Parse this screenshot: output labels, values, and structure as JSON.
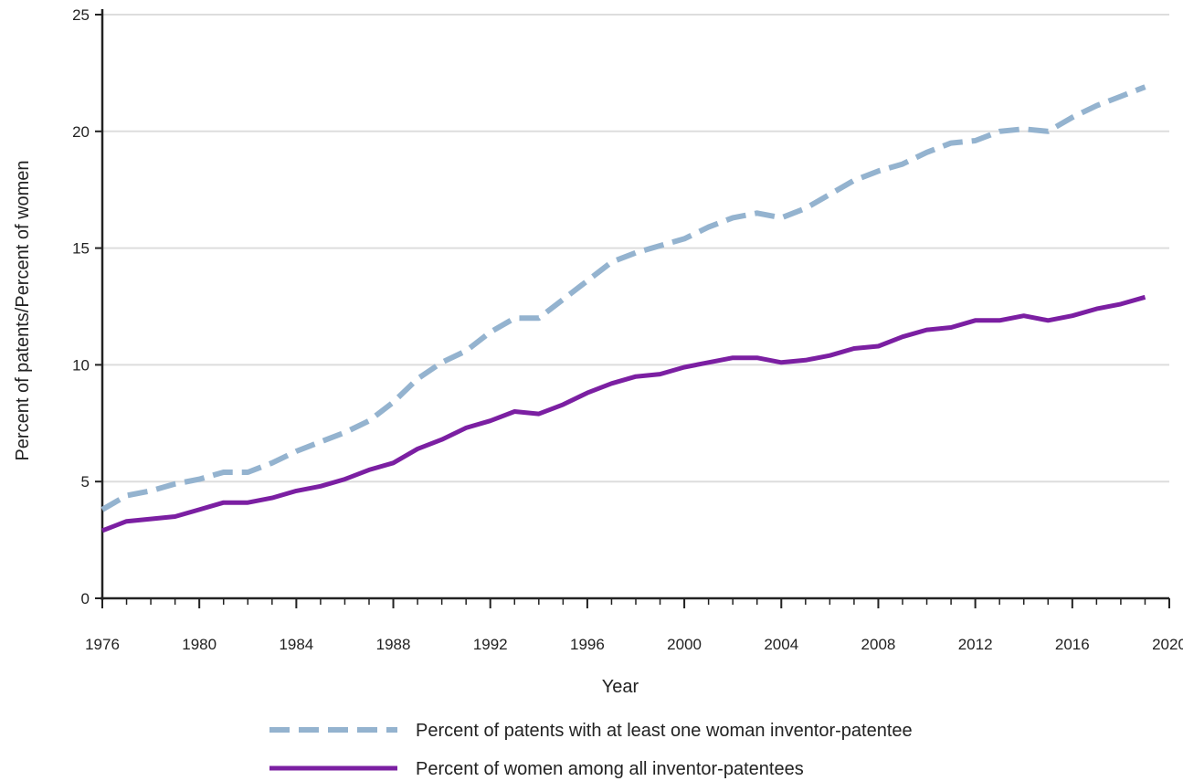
{
  "chart_data": {
    "type": "line",
    "xlabel": "Year",
    "ylabel": "Percent of patents/Percent of women",
    "xlim": [
      1976,
      2020
    ],
    "ylim": [
      0,
      25
    ],
    "x_ticks": [
      "1976",
      "1980",
      "1984",
      "1988",
      "1992",
      "1996",
      "2000",
      "2004",
      "2008",
      "2012",
      "2016",
      "2020"
    ],
    "y_ticks": [
      "0",
      "5",
      "10",
      "15",
      "20",
      "25"
    ],
    "grid": "horizontal",
    "legend_position": "bottom",
    "x": [
      1976,
      1977,
      1978,
      1979,
      1980,
      1981,
      1982,
      1983,
      1984,
      1985,
      1986,
      1987,
      1988,
      1989,
      1990,
      1991,
      1992,
      1993,
      1994,
      1995,
      1996,
      1997,
      1998,
      1999,
      2000,
      2001,
      2002,
      2003,
      2004,
      2005,
      2006,
      2007,
      2008,
      2009,
      2010,
      2011,
      2012,
      2013,
      2014,
      2015,
      2016,
      2017,
      2018,
      2019
    ],
    "series": [
      {
        "name": "Percent of patents with at least one woman inventor-patentee",
        "color": "#94b3cf",
        "style": "dashed",
        "values": [
          3.8,
          4.4,
          4.6,
          4.9,
          5.1,
          5.4,
          5.4,
          5.8,
          6.3,
          6.7,
          7.1,
          7.6,
          8.4,
          9.4,
          10.1,
          10.6,
          11.4,
          12.0,
          12.0,
          12.8,
          13.6,
          14.4,
          14.8,
          15.1,
          15.4,
          15.9,
          16.3,
          16.5,
          16.3,
          16.7,
          17.3,
          17.9,
          18.3,
          18.6,
          19.1,
          19.5,
          19.6,
          20.0,
          20.1,
          20.0,
          20.6,
          21.1,
          21.5,
          21.9
        ]
      },
      {
        "name": "Percent of women among all inventor-patentees",
        "color": "#7b1fa2",
        "style": "solid",
        "values": [
          2.9,
          3.3,
          3.4,
          3.5,
          3.8,
          4.1,
          4.1,
          4.3,
          4.6,
          4.8,
          5.1,
          5.5,
          5.8,
          6.4,
          6.8,
          7.3,
          7.6,
          8.0,
          7.9,
          8.3,
          8.8,
          9.2,
          9.5,
          9.6,
          9.9,
          10.1,
          10.3,
          10.3,
          10.1,
          10.2,
          10.4,
          10.7,
          10.8,
          11.2,
          11.5,
          11.6,
          11.9,
          11.9,
          12.1,
          11.9,
          12.1,
          12.4,
          12.6,
          12.9
        ]
      }
    ]
  }
}
